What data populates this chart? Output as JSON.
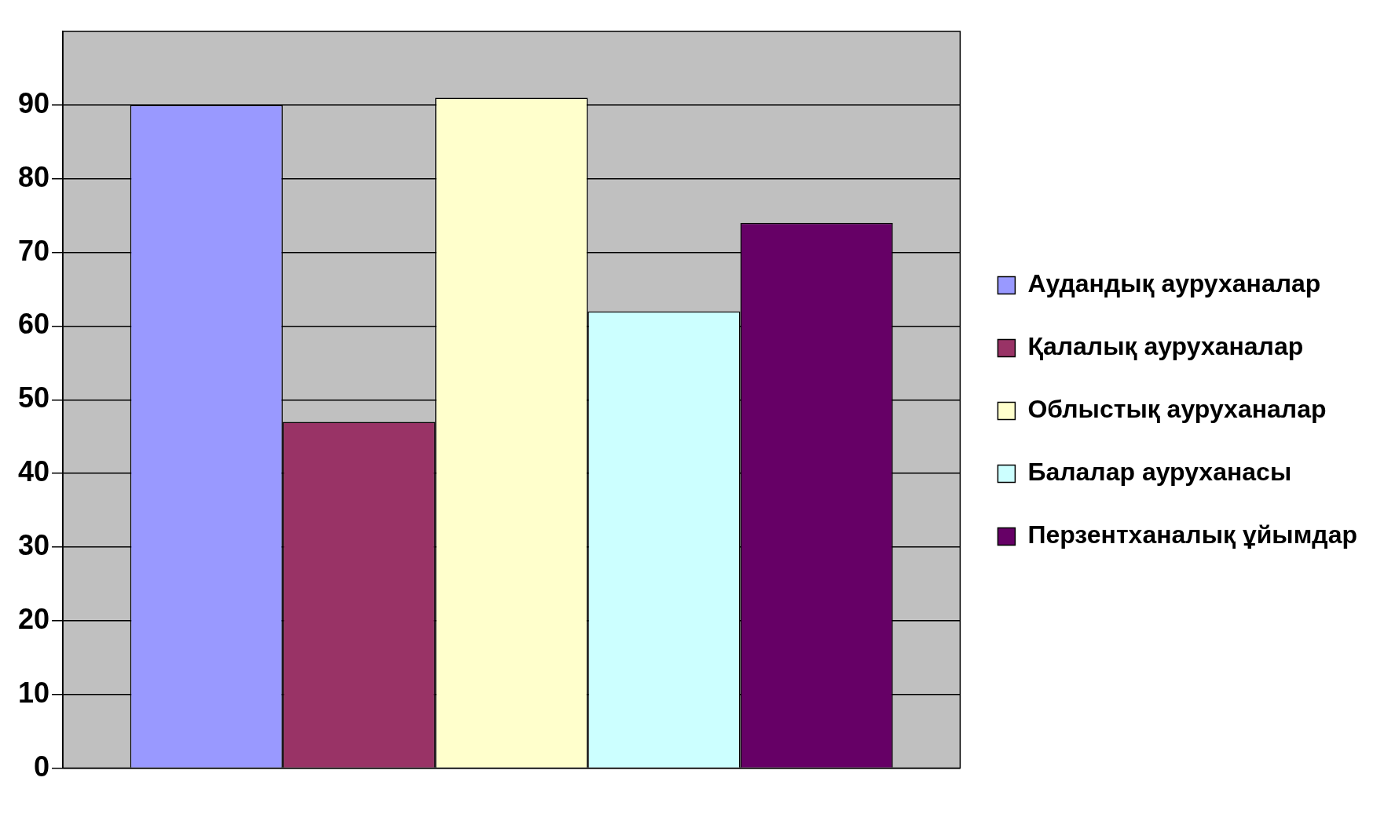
{
  "chart_data": {
    "type": "bar",
    "categories": [
      null
    ],
    "series": [
      {
        "name": "Аудандық ауруханалар",
        "color": "#9999ff",
        "values": [
          90
        ]
      },
      {
        "name": "Қалалық ауруханалар",
        "color": "#993366",
        "values": [
          47
        ]
      },
      {
        "name": "Облыстық ауруханалар",
        "color": "#ffffcc",
        "values": [
          91
        ]
      },
      {
        "name": "Балалар ауруханасы",
        "color": "#ccffff",
        "values": [
          62
        ]
      },
      {
        "name": "Перзентханалық ұйымдар",
        "color": "#660066",
        "values": [
          74
        ]
      }
    ],
    "ylim": [
      0,
      100
    ],
    "yticks": [
      0,
      10,
      20,
      30,
      40,
      50,
      60,
      70,
      80,
      90
    ],
    "grid": "y",
    "legend": "right"
  }
}
